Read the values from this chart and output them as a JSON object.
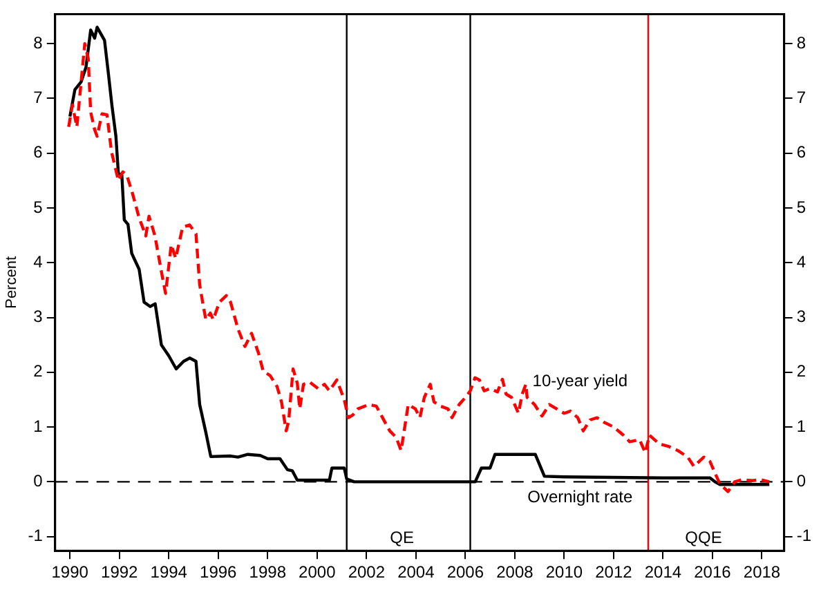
{
  "chart_data": {
    "type": "line",
    "ylabel": "Percent",
    "xlim": [
      1989.4,
      2018.9
    ],
    "xticks": [
      1990,
      1992,
      1994,
      1996,
      1998,
      2000,
      2002,
      2004,
      2006,
      2008,
      2010,
      2012,
      2014,
      2016,
      2018
    ],
    "ylim": [
      -1.26,
      8.54
    ],
    "yticks": [
      -1,
      0,
      1,
      2,
      3,
      4,
      5,
      6,
      7,
      8
    ],
    "y2lim": [
      -1.26,
      8.54
    ],
    "y2ticks": [
      -1,
      0,
      1,
      2,
      3,
      4,
      5,
      6,
      7,
      8
    ],
    "grid": false,
    "legend": false,
    "series": [
      {
        "name": "10-year yield",
        "color": "#ff0000",
        "line_style": "dashed",
        "x": [
          1989.95,
          1990.1,
          1990.28,
          1990.6,
          1990.74,
          1990.84,
          1991.0,
          1991.1,
          1991.3,
          1991.5,
          1991.68,
          1991.96,
          1992.14,
          1992.3,
          1992.51,
          1992.8,
          1993.07,
          1993.2,
          1993.44,
          1993.7,
          1993.87,
          1994.1,
          1994.28,
          1994.56,
          1994.84,
          1995.1,
          1995.25,
          1995.4,
          1995.5,
          1995.68,
          1995.8,
          1996.05,
          1996.33,
          1996.5,
          1996.8,
          1997.08,
          1997.35,
          1997.63,
          1997.82,
          1998.1,
          1998.38,
          1998.56,
          1998.75,
          1998.85,
          1999.03,
          1999.2,
          1999.3,
          1999.45,
          1999.7,
          2000.05,
          2000.3,
          2000.5,
          2000.8,
          2001.1,
          2001.27,
          2001.45,
          2001.65,
          2002.1,
          2002.4,
          2002.65,
          2002.94,
          2003.2,
          2003.4,
          2003.69,
          2003.98,
          2004.16,
          2004.34,
          2004.58,
          2004.73,
          2005.0,
          2005.3,
          2005.46,
          2005.75,
          2006.0,
          2006.2,
          2006.39,
          2006.57,
          2006.76,
          2007.0,
          2007.3,
          2007.5,
          2007.65,
          2007.87,
          2008.15,
          2008.3,
          2008.45,
          2008.5,
          2008.8,
          2009.1,
          2009.4,
          2009.7,
          2010.0,
          2010.25,
          2010.55,
          2010.77,
          2011.05,
          2011.33,
          2011.6,
          2012.0,
          2012.4,
          2012.65,
          2013.05,
          2013.28,
          2013.45,
          2013.85,
          2014.2,
          2014.6,
          2015.0,
          2015.25,
          2015.65,
          2015.9,
          2016.1,
          2016.3,
          2016.63,
          2016.9,
          2017.2,
          2017.6,
          2017.95,
          2018.3
        ],
        "values": [
          6.48,
          6.88,
          6.48,
          8.0,
          7.73,
          6.75,
          6.43,
          6.31,
          6.72,
          6.7,
          6.03,
          5.5,
          5.66,
          5.6,
          5.3,
          4.82,
          4.49,
          4.85,
          4.49,
          3.84,
          3.44,
          4.33,
          4.08,
          4.65,
          4.69,
          4.53,
          3.6,
          3.2,
          2.96,
          3.08,
          2.96,
          3.28,
          3.4,
          3.28,
          2.79,
          2.47,
          2.71,
          2.35,
          2.02,
          1.94,
          1.74,
          1.46,
          0.93,
          1.1,
          2.06,
          1.8,
          1.33,
          1.78,
          1.82,
          1.7,
          1.78,
          1.66,
          1.86,
          1.5,
          1.17,
          1.22,
          1.33,
          1.41,
          1.38,
          1.17,
          0.93,
          0.81,
          0.57,
          1.41,
          1.33,
          1.17,
          1.54,
          1.78,
          1.46,
          1.38,
          1.33,
          1.17,
          1.41,
          1.54,
          1.66,
          1.9,
          1.86,
          1.66,
          1.7,
          1.64,
          1.87,
          1.6,
          1.54,
          1.25,
          1.6,
          1.78,
          1.54,
          1.41,
          1.2,
          1.41,
          1.33,
          1.25,
          1.29,
          1.17,
          0.93,
          1.13,
          1.17,
          1.09,
          1.0,
          0.85,
          0.73,
          0.77,
          0.53,
          0.85,
          0.69,
          0.65,
          0.57,
          0.45,
          0.28,
          0.45,
          0.37,
          0.16,
          -0.04,
          -0.18,
          0.0,
          0.04,
          0.02,
          0.04,
          0.0
        ]
      },
      {
        "name": "Overnight rate",
        "color": "#000000",
        "line_style": "solid",
        "x": [
          1990.0,
          1990.2,
          1990.45,
          1990.65,
          1990.84,
          1991.0,
          1991.1,
          1991.4,
          1991.55,
          1991.7,
          1991.86,
          1991.96,
          1992.1,
          1992.2,
          1992.35,
          1992.5,
          1992.8,
          1993.0,
          1993.25,
          1993.45,
          1993.7,
          1994.0,
          1994.3,
          1994.6,
          1994.85,
          1995.1,
          1995.25,
          1995.5,
          1995.7,
          1996.5,
          1996.8,
          1997.2,
          1997.7,
          1998.0,
          1998.5,
          1998.8,
          1999.0,
          1999.2,
          2000.5,
          2000.6,
          2001.1,
          2001.2,
          2001.5,
          2006.4,
          2006.65,
          2007.0,
          2007.2,
          2008.83,
          2009.2,
          2010.0,
          2012.0,
          2014.0,
          2015.9,
          2016.1,
          2016.3,
          2018.3
        ],
        "values": [
          6.67,
          7.16,
          7.3,
          7.57,
          8.25,
          8.1,
          8.3,
          8.06,
          7.48,
          6.87,
          6.31,
          5.63,
          5.6,
          4.78,
          4.7,
          4.17,
          3.88,
          3.28,
          3.2,
          3.25,
          2.5,
          2.3,
          2.06,
          2.2,
          2.26,
          2.2,
          1.41,
          0.9,
          0.46,
          0.47,
          0.45,
          0.5,
          0.48,
          0.42,
          0.42,
          0.22,
          0.2,
          0.03,
          0.03,
          0.25,
          0.25,
          0.05,
          0.0,
          0.0,
          0.25,
          0.25,
          0.5,
          0.5,
          0.1,
          0.09,
          0.08,
          0.07,
          0.07,
          0.0,
          -0.05,
          -0.05
        ]
      }
    ],
    "ref_lines": [
      {
        "axis": "y",
        "value": 0,
        "color": "#000000",
        "line_style": "dashed"
      },
      {
        "axis": "x",
        "value": 2001.2,
        "color": "#000000",
        "line_style": "solid",
        "label": "QE"
      },
      {
        "axis": "x",
        "value": 2006.2,
        "color": "#000000",
        "line_style": "solid"
      },
      {
        "axis": "x",
        "value": 2013.4,
        "color": "#ff0000",
        "line_style": "solid",
        "label": "QQE"
      }
    ]
  }
}
